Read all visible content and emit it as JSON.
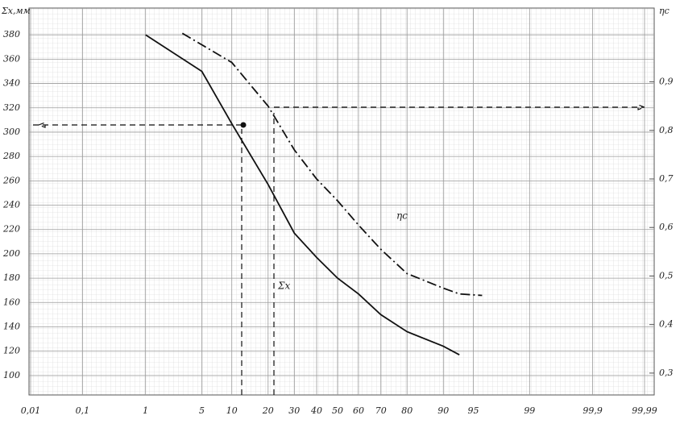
{
  "chart_data": {
    "type": "line",
    "x_scale": "probability",
    "xlim": [
      0.01,
      99.99
    ],
    "xticks": [
      {
        "value": 0.01,
        "label": "0,01"
      },
      {
        "value": 0.1,
        "label": "0,1"
      },
      1,
      5,
      10,
      20,
      30,
      40,
      50,
      60,
      70,
      80,
      90,
      95,
      99,
      {
        "value": 99.9,
        "label": "99,9"
      },
      {
        "value": 99.99,
        "label": "99,99"
      }
    ],
    "ylabel": "Σx,мм",
    "ylim": [
      84,
      402
    ],
    "yticks": [
      100,
      120,
      140,
      160,
      180,
      200,
      220,
      240,
      260,
      280,
      300,
      320,
      340,
      360,
      380
    ],
    "y2label": "ηс",
    "y2lim": [
      0.255,
      1.052
    ],
    "y2ticks": [
      {
        "value": 0.3,
        "label": "0,3"
      },
      {
        "value": 0.4,
        "label": "0,4"
      },
      {
        "value": 0.5,
        "label": "0,5"
      },
      {
        "value": 0.6,
        "label": "0,6"
      },
      {
        "value": 0.7,
        "label": "0,7"
      },
      {
        "value": 0.8,
        "label": "0,8"
      },
      {
        "value": 0.9,
        "label": "0,9"
      }
    ],
    "grid": true,
    "series": [
      {
        "name": "Σx",
        "color": "#111111",
        "line_style": "solid",
        "x": [
          1,
          5,
          10,
          20,
          30,
          40,
          50,
          60,
          70,
          80,
          90,
          93
        ],
        "values": [
          380,
          350,
          307,
          257,
          217,
          197,
          180,
          167,
          150,
          136,
          124,
          117
        ]
      },
      {
        "name": "ηс",
        "color": "#111111",
        "line_style": "dashdot",
        "axis": "y2",
        "x": [
          3,
          10,
          20,
          30,
          40,
          50,
          60,
          70,
          80,
          90,
          93,
          96
        ],
        "values": [
          1.0,
          0.94,
          0.85,
          0.76,
          0.7,
          0.655,
          0.605,
          0.555,
          0.505,
          0.475,
          0.463,
          0.46
        ]
      }
    ]
  }
}
